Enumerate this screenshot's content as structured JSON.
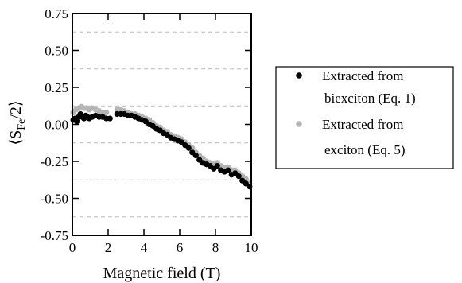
{
  "chart_data": {
    "type": "scatter",
    "title": "",
    "xlabel": "Magnetic field (T)",
    "ylabel": {
      "main": "S",
      "subscript": "Fe",
      "suffix": "/2"
    },
    "xlim": [
      0,
      10
    ],
    "ylim": [
      -0.75,
      0.75
    ],
    "xticks": [
      0,
      2,
      4,
      6,
      8,
      10
    ],
    "xtick_labels": [
      "0",
      "2",
      "4",
      "6",
      "8",
      "10"
    ],
    "yticks": [
      -0.75,
      -0.5,
      -0.25,
      0.0,
      0.25,
      0.5,
      0.75
    ],
    "ytick_labels": [
      "-0.75",
      "-0.50",
      "-0.25",
      "0.00",
      "0.25",
      "0.50",
      "0.75"
    ],
    "grid": {
      "horizontal_dashed": [
        -0.625,
        -0.375,
        -0.125,
        0.125,
        0.375,
        0.625
      ],
      "color": "#bbbbbb"
    },
    "legend_position": "right",
    "series": [
      {
        "name": "Extracted from biexciton (Eq. 1)",
        "legend_lines": [
          "Extracted from",
          "biexciton (Eq. 1)"
        ],
        "color": "#000000",
        "points": [
          [
            0.05,
            0.03
          ],
          [
            0.15,
            0.04
          ],
          [
            0.25,
            0.02
          ],
          [
            0.35,
            0.05
          ],
          [
            0.45,
            0.07
          ],
          [
            0.55,
            0.05
          ],
          [
            0.65,
            0.04
          ],
          [
            0.75,
            0.06
          ],
          [
            0.85,
            0.05
          ],
          [
            0.95,
            0.04
          ],
          [
            1.1,
            0.05
          ],
          [
            1.3,
            0.06
          ],
          [
            1.5,
            0.05
          ],
          [
            1.7,
            0.05
          ],
          [
            1.9,
            0.04
          ],
          [
            2.1,
            0.04
          ],
          [
            2.5,
            0.07
          ],
          [
            2.7,
            0.07
          ],
          [
            2.9,
            0.07
          ],
          [
            3.1,
            0.06
          ],
          [
            3.3,
            0.06
          ],
          [
            3.5,
            0.05
          ],
          [
            3.7,
            0.04
          ],
          [
            3.9,
            0.03
          ],
          [
            4.1,
            0.02
          ],
          [
            4.3,
            0.0
          ],
          [
            4.5,
            -0.01
          ],
          [
            4.7,
            -0.03
          ],
          [
            4.9,
            -0.04
          ],
          [
            5.1,
            -0.06
          ],
          [
            5.3,
            -0.07
          ],
          [
            5.5,
            -0.09
          ],
          [
            5.7,
            -0.1
          ],
          [
            5.9,
            -0.11
          ],
          [
            6.1,
            -0.12
          ],
          [
            6.3,
            -0.14
          ],
          [
            6.5,
            -0.16
          ],
          [
            6.7,
            -0.19
          ],
          [
            6.9,
            -0.21
          ],
          [
            7.1,
            -0.24
          ],
          [
            7.3,
            -0.26
          ],
          [
            7.5,
            -0.27
          ],
          [
            7.7,
            -0.28
          ],
          [
            7.9,
            -0.3
          ],
          [
            8.1,
            -0.28
          ],
          [
            8.3,
            -0.31
          ],
          [
            8.5,
            -0.32
          ],
          [
            8.7,
            -0.31
          ],
          [
            8.9,
            -0.34
          ],
          [
            9.1,
            -0.33
          ],
          [
            9.3,
            -0.35
          ],
          [
            9.5,
            -0.38
          ],
          [
            9.7,
            -0.4
          ],
          [
            9.9,
            -0.42
          ]
        ]
      },
      {
        "name": "Extracted from exciton (Eq. 5)",
        "legend_lines": [
          "Extracted from",
          "exciton (Eq. 5)"
        ],
        "color": "#b4b4b4",
        "points": [
          [
            0.05,
            0.08
          ],
          [
            0.2,
            0.1
          ],
          [
            0.35,
            0.11
          ],
          [
            0.5,
            0.12
          ],
          [
            0.65,
            0.11
          ],
          [
            0.8,
            0.11
          ],
          [
            0.95,
            0.1
          ],
          [
            1.1,
            0.11
          ],
          [
            1.3,
            0.1
          ],
          [
            1.5,
            0.09
          ],
          [
            1.7,
            0.08
          ],
          [
            1.9,
            0.08
          ],
          [
            2.5,
            0.1
          ],
          [
            2.7,
            0.1
          ],
          [
            2.9,
            0.09
          ],
          [
            3.1,
            0.08
          ],
          [
            3.3,
            0.07
          ],
          [
            3.5,
            0.07
          ],
          [
            3.7,
            0.06
          ],
          [
            3.9,
            0.05
          ],
          [
            4.1,
            0.04
          ],
          [
            4.3,
            0.03
          ],
          [
            4.5,
            0.01
          ],
          [
            4.7,
            -0.01
          ],
          [
            4.9,
            -0.02
          ],
          [
            5.1,
            -0.04
          ],
          [
            5.3,
            -0.05
          ],
          [
            5.5,
            -0.07
          ],
          [
            5.7,
            -0.08
          ],
          [
            5.9,
            -0.09
          ],
          [
            6.1,
            -0.1
          ],
          [
            6.3,
            -0.12
          ],
          [
            6.5,
            -0.14
          ],
          [
            6.7,
            -0.16
          ],
          [
            6.9,
            -0.19
          ],
          [
            7.1,
            -0.21
          ],
          [
            7.3,
            -0.23
          ],
          [
            7.5,
            -0.25
          ],
          [
            7.7,
            -0.26
          ],
          [
            7.9,
            -0.27
          ],
          [
            8.1,
            -0.26
          ],
          [
            8.3,
            -0.28
          ],
          [
            8.5,
            -0.29
          ],
          [
            8.7,
            -0.29
          ],
          [
            8.9,
            -0.31
          ],
          [
            9.1,
            -0.31
          ],
          [
            9.3,
            -0.33
          ],
          [
            9.5,
            -0.35
          ],
          [
            9.7,
            -0.37
          ],
          [
            9.9,
            -0.4
          ]
        ]
      }
    ]
  }
}
